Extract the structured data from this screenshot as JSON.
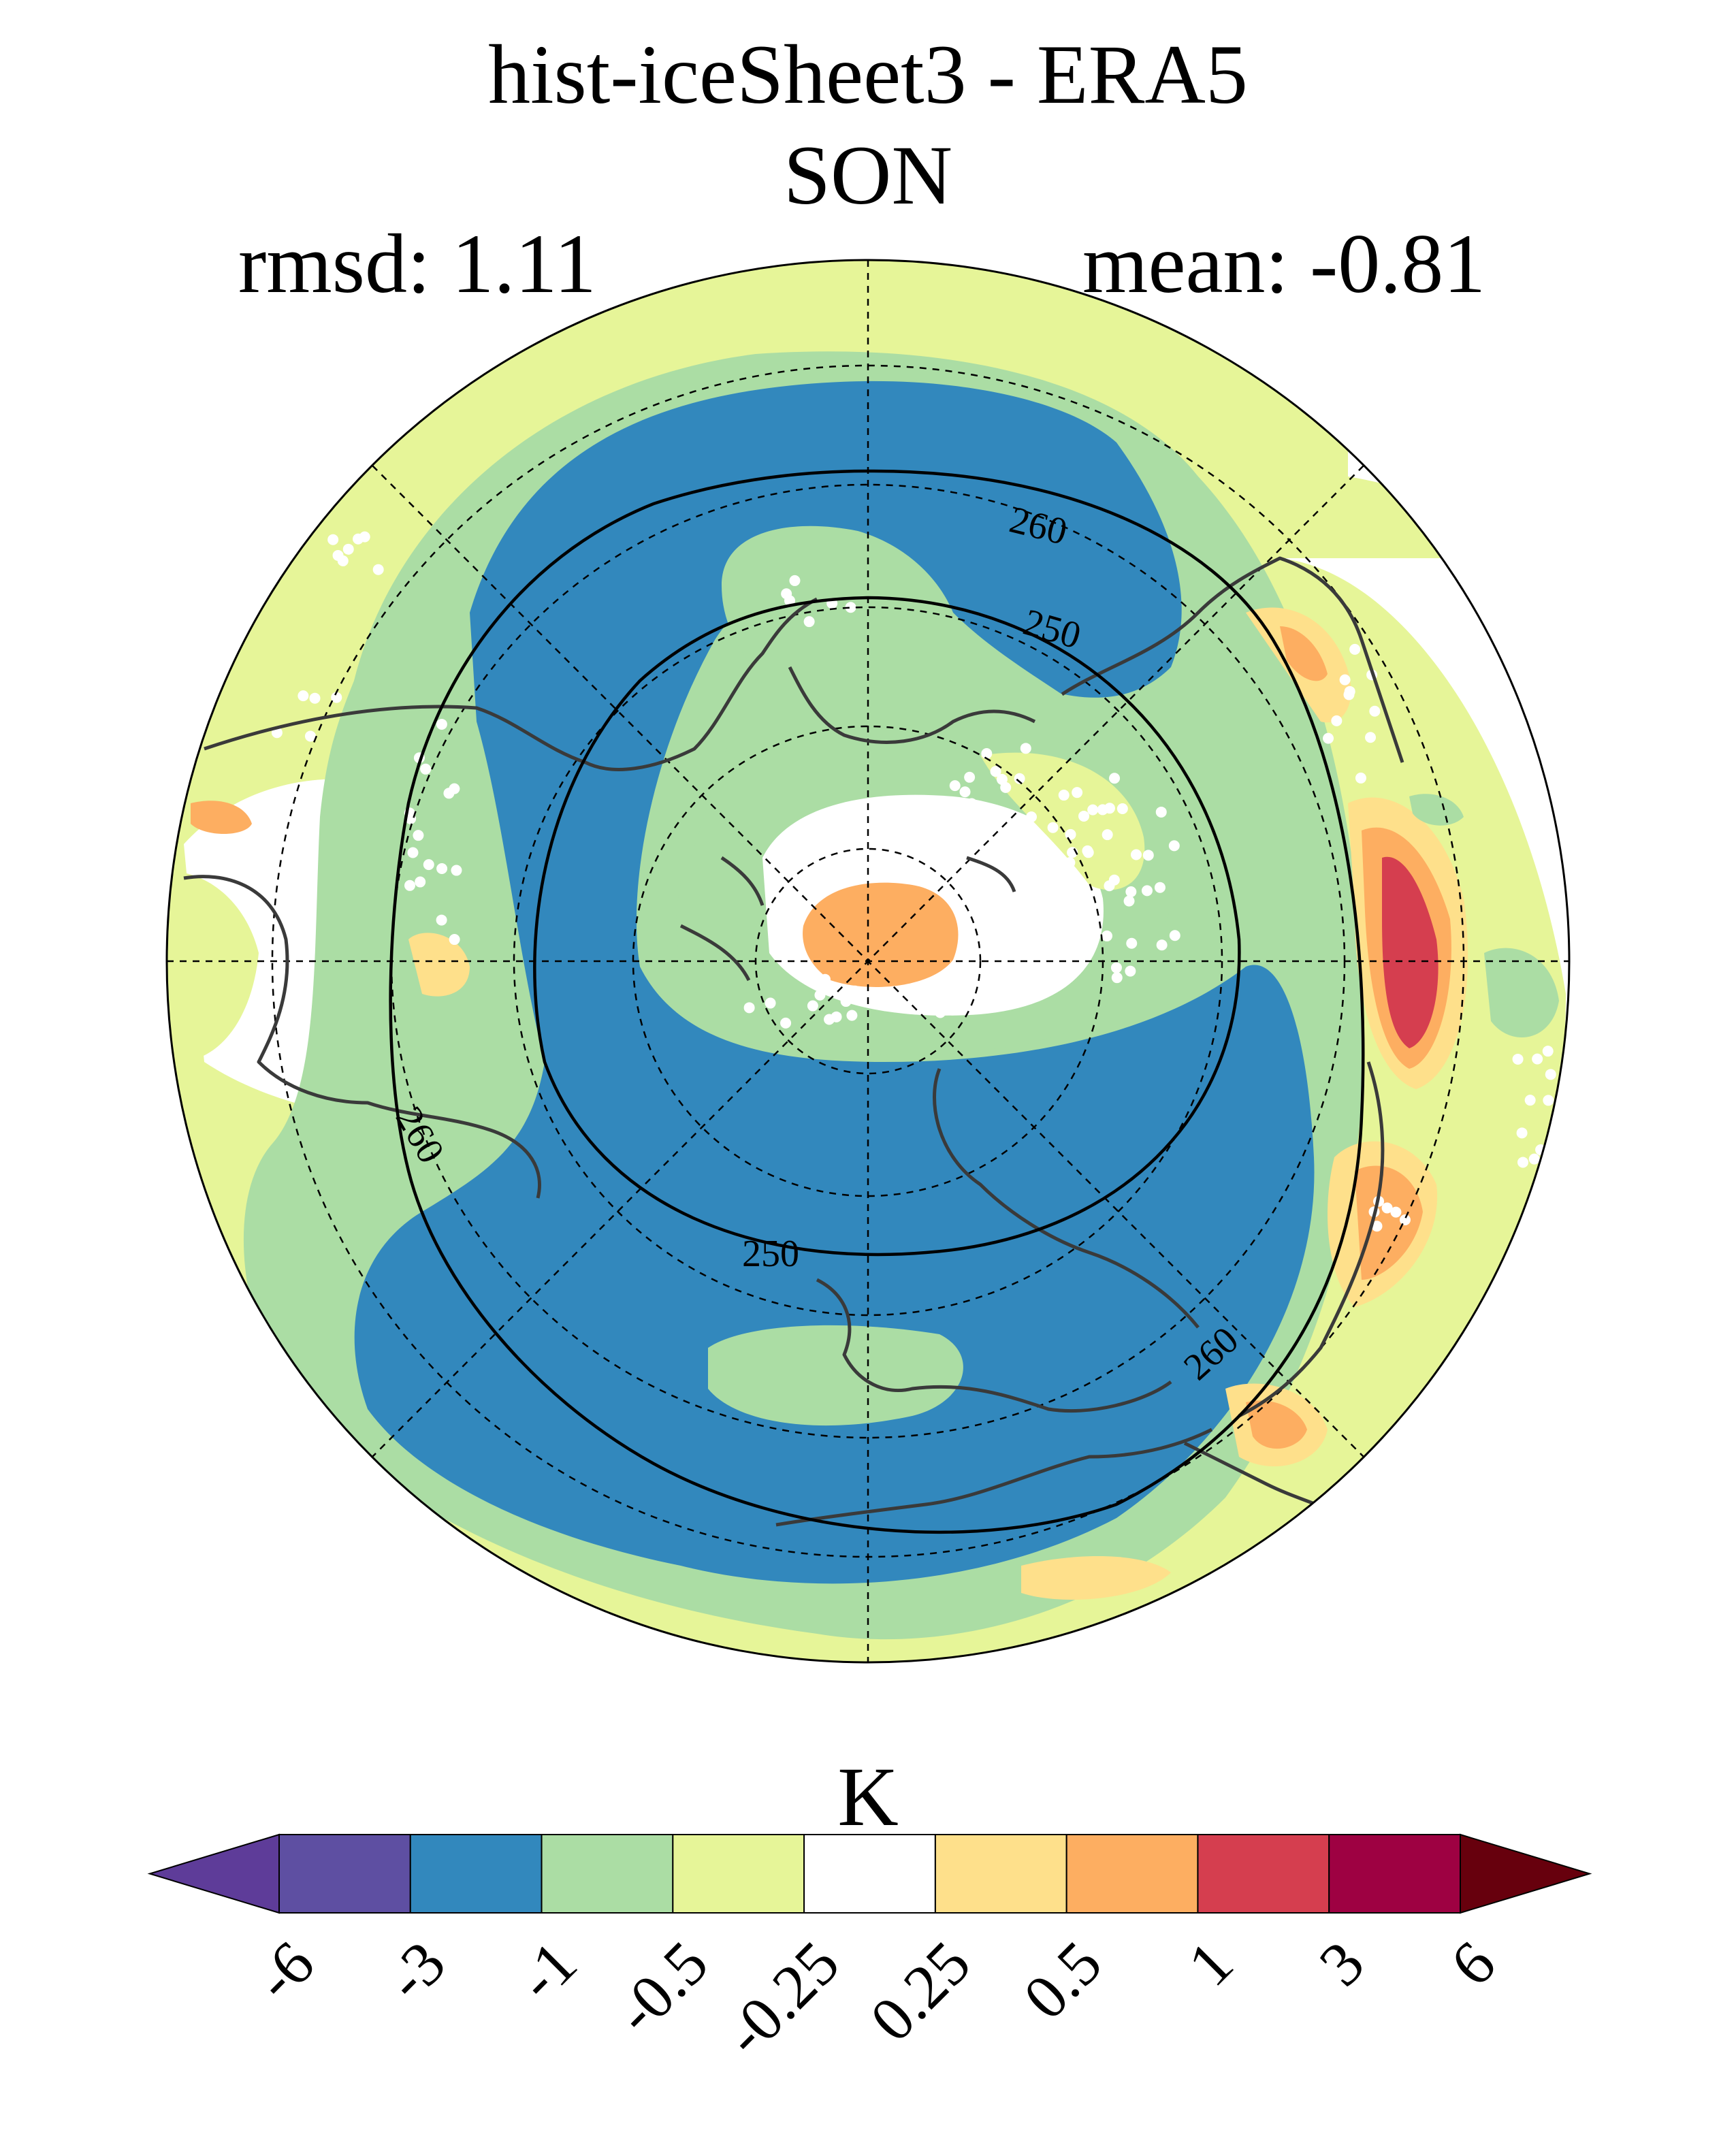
{
  "chart_data": {
    "type": "heatmap",
    "projection": "polar-stereographic (north pole)",
    "title": "hist-iceSheet3 - ERA5",
    "subtitle": "SON",
    "stats": {
      "rmsd": "rmsd: 1.11",
      "mean": "mean: -0.81"
    },
    "colorbar": {
      "units": "K",
      "tick_labels": [
        "-6",
        "-3",
        "-1",
        "-0.5",
        "-0.25",
        "0.25",
        "0.5",
        "1",
        "3",
        "6"
      ],
      "levels": [
        -6,
        -3,
        -1,
        -0.5,
        -0.25,
        0.25,
        0.5,
        1,
        3,
        6
      ],
      "colors": [
        "#5e3c99",
        "#5e4fa2",
        "#3288bd",
        "#abdda4",
        "#e6f598",
        "#ffffff",
        "#fee08b",
        "#fdae61",
        "#d53e4f",
        "#9e0142",
        "#67000d"
      ],
      "extend": "both"
    },
    "contour_labels": [
      "260",
      "250",
      "250",
      "260",
      "260"
    ],
    "stippling": "white dots mark grid points meeting significance",
    "colors": {
      "blue": "#3288bd",
      "green": "#abdda4",
      "lightgreen": "#e6f598",
      "yellow": "#fee08b",
      "orange": "#fdae61",
      "red": "#d53e4f",
      "coast": "#3a3a3a"
    }
  }
}
